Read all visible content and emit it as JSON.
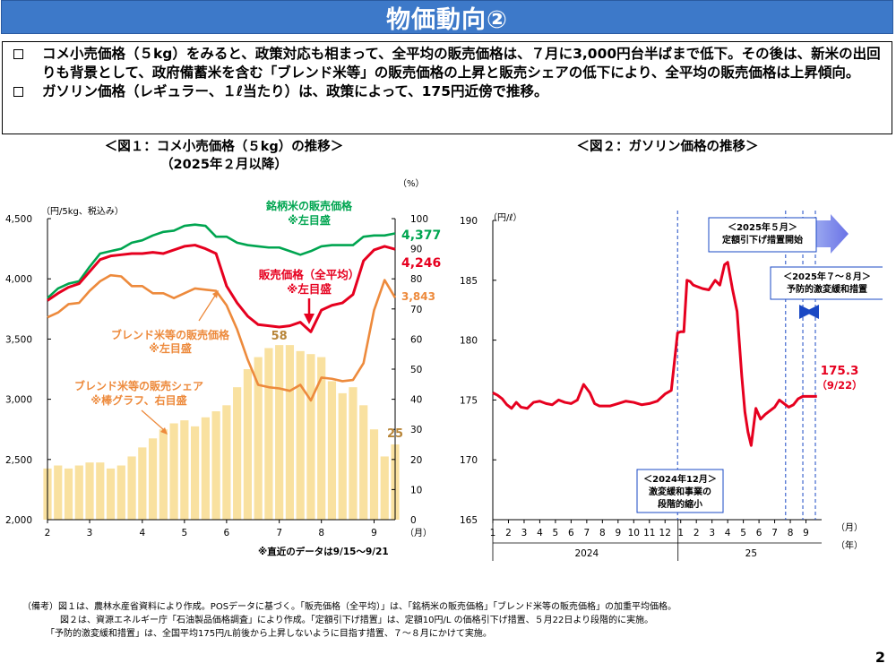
{
  "page_title": "物価動向②",
  "summary": [
    "コメ小売価格（５kg）をみると、政策対応も相まって、全平均の販売価格は、７月に3,000円台半ばまで低下。その後は、新米の出回りも背景として、政府備蓄米を含む「ブレンド米等」の販売価格の上昇と販売シェアの低下により、全平均の販売価格は上昇傾向。",
    "ガソリン価格（レギュラー、１ℓ当たり）は、政策によって、175円近傍で推移。"
  ],
  "chart1_title_line1": "＜図１：コメ小売価格（５kg）の推移＞",
  "chart1_title_line2": "（2025年２月以降）",
  "chart2_title": "＜図２：ガソリン価格の推移＞",
  "colors": {
    "brand": "#00a550",
    "avg": "#e6001f",
    "blend": "#ed8a3c",
    "share": "#f9e1a0",
    "accent": "#1a48c4",
    "title_bar": "#3d79c9"
  },
  "chart_data": [
    {
      "type": "line",
      "left_unit": "（円/5kg、税込み）",
      "right_unit": "（%）",
      "x_unit": "（月）",
      "left_ticks": [
        "4,500",
        "4,000",
        "3,500",
        "3,000",
        "2,500",
        "2,000"
      ],
      "right_ticks": [
        "100",
        "90",
        "80",
        "70",
        "60",
        "50",
        "40",
        "30",
        "20",
        "10",
        "0"
      ],
      "ylim_left": [
        2000,
        4500
      ],
      "ylim_right": [
        0,
        100
      ],
      "month_labels": [
        "2",
        "3",
        "4",
        "5",
        "6",
        "7",
        "8",
        "9"
      ],
      "xlim_week": [
        0,
        33
      ],
      "week_x": [
        0,
        1,
        2,
        3,
        4,
        5,
        6,
        7,
        8,
        9,
        10,
        11,
        12,
        13,
        14,
        15,
        16,
        17,
        18,
        19,
        20,
        21,
        22,
        23,
        24,
        25,
        26,
        27,
        28,
        29,
        30,
        31,
        32,
        33
      ],
      "series": [
        {
          "name": "銘柄米の販売価格",
          "note": "※左目盛",
          "axis": "left",
          "values": [
            3840,
            3920,
            3960,
            3980,
            4100,
            4210,
            4230,
            4250,
            4300,
            4320,
            4360,
            4390,
            4400,
            4440,
            4450,
            4440,
            4350,
            4350,
            4300,
            4280,
            4270,
            4260,
            4260,
            4230,
            4200,
            4230,
            4270,
            4280,
            4280,
            4280,
            4350,
            4360,
            4360,
            4377
          ],
          "end_label": "4,377"
        },
        {
          "name": "販売価格（全平均）",
          "note": "※左目盛",
          "axis": "left",
          "values": [
            3820,
            3880,
            3930,
            3960,
            4060,
            4160,
            4190,
            4200,
            4210,
            4210,
            4220,
            4210,
            4240,
            4270,
            4280,
            4250,
            4210,
            3940,
            3800,
            3690,
            3620,
            3610,
            3600,
            3610,
            3640,
            3560,
            3740,
            3780,
            3800,
            3870,
            4150,
            4240,
            4270,
            4246
          ],
          "end_label": "4,246"
        },
        {
          "name": "ブレンド米等の販売価格",
          "note": "※左目盛",
          "axis": "left",
          "values": [
            3680,
            3720,
            3790,
            3800,
            3900,
            3980,
            4030,
            4020,
            3940,
            3940,
            3880,
            3880,
            3840,
            3880,
            3920,
            3910,
            3900,
            3780,
            3580,
            3330,
            3120,
            3100,
            3090,
            3070,
            3120,
            2990,
            3180,
            3170,
            3150,
            3160,
            3300,
            3740,
            3990,
            3843
          ],
          "end_label": "3,843"
        },
        {
          "name": "ブレンド米等の販売シェア",
          "note": "※棒グラフ、右目盛",
          "axis": "right",
          "type": "bar",
          "values": [
            17,
            18,
            17,
            18,
            19,
            19,
            17,
            18,
            21,
            24,
            27,
            30,
            32,
            33,
            31,
            34,
            36,
            38,
            44,
            50,
            54,
            57,
            58,
            58,
            56,
            55,
            54,
            46,
            42,
            44,
            38,
            30,
            21,
            25
          ],
          "peak_label": "58",
          "end_label": "25"
        }
      ],
      "footnote": "※直近のデータは9/15～9/21"
    },
    {
      "type": "line",
      "y_unit": "（円/ℓ）",
      "x_unit": "（月）",
      "year_unit": "（年）",
      "y_ticks": [
        "190",
        "185",
        "180",
        "175",
        "170",
        "165"
      ],
      "ylim": [
        165,
        190
      ],
      "month_labels": [
        "1",
        "2",
        "3",
        "4",
        "5",
        "6",
        "7",
        "8",
        "9",
        "10",
        "11",
        "12",
        "1",
        "2",
        "3",
        "4",
        "5",
        "6",
        "7",
        "8",
        "9"
      ],
      "year_labels": [
        "2024",
        "25"
      ],
      "xlim_month": [
        0,
        21
      ],
      "series": [
        {
          "name": "ガソリン価格",
          "x": [
            0,
            0.3,
            0.6,
            0.9,
            1.2,
            1.5,
            1.8,
            2.2,
            2.6,
            3.0,
            3.4,
            3.8,
            4.2,
            4.6,
            5.0,
            5.4,
            5.8,
            6.2,
            6.5,
            6.8,
            7.1,
            7.5,
            8.0,
            8.5,
            9.0,
            9.5,
            10.0,
            10.5,
            11.0,
            11.4,
            11.8,
            12.0,
            12.2,
            12.4,
            12.6,
            12.8,
            13.0,
            13.4,
            13.8,
            14.2,
            14.5,
            14.8,
            15.0,
            15.3,
            15.6,
            15.9,
            16.1,
            16.3,
            16.5,
            16.8,
            17.1,
            17.4,
            17.7,
            18.0,
            18.3,
            18.6,
            18.9,
            19.2,
            19.5,
            19.8,
            20.1,
            20.4,
            20.7
          ],
          "values": [
            175.6,
            175.4,
            175.1,
            174.6,
            174.3,
            174.8,
            174.4,
            174.3,
            174.8,
            174.9,
            174.7,
            174.6,
            175.0,
            174.8,
            174.7,
            175.0,
            176.3,
            175.6,
            174.7,
            174.5,
            174.5,
            174.5,
            174.7,
            174.9,
            174.8,
            174.6,
            174.7,
            174.9,
            175.5,
            175.8,
            180.6,
            180.7,
            180.7,
            185.0,
            184.9,
            184.6,
            184.5,
            184.3,
            184.2,
            185.0,
            184.6,
            186.3,
            186.5,
            184.3,
            182.4,
            177.0,
            174.0,
            172.3,
            171.2,
            174.3,
            173.4,
            173.8,
            174.1,
            174.4,
            175.0,
            174.7,
            174.4,
            174.6,
            175.1,
            175.3,
            175.3,
            175.3,
            175.3
          ],
          "end_label": "175.3",
          "end_date": "（9/22）"
        }
      ],
      "annotations": [
        {
          "text": [
            "＜2024年12月＞",
            "激変緩和事業の",
            "段階的縮小"
          ]
        },
        {
          "text": [
            "＜2025年５月＞",
            "定額引下げ措置開始"
          ]
        },
        {
          "text": [
            "＜2025年７～８月＞",
            "予防的激変緩和措置"
          ]
        }
      ]
    }
  ],
  "notes": [
    "（備考）図１は、農林水産省資料により作成。POSデータに基づく。「販売価格（全平均）」は、「銘柄米の販売価格」「ブレンド米等の販売価格」の加重平均価格。",
    "図２は、資源エネルギー庁「石油製品価格調査」により作成。「定額引下げ措置」は、定額10円/L の価格引下げ措置、５月22日より段階的に実施。",
    "「予防的激変緩和措置」は、全国平均175円/L前後から上昇しないように目指す措置、７～８月にかけて実施。"
  ],
  "page_number": "2"
}
